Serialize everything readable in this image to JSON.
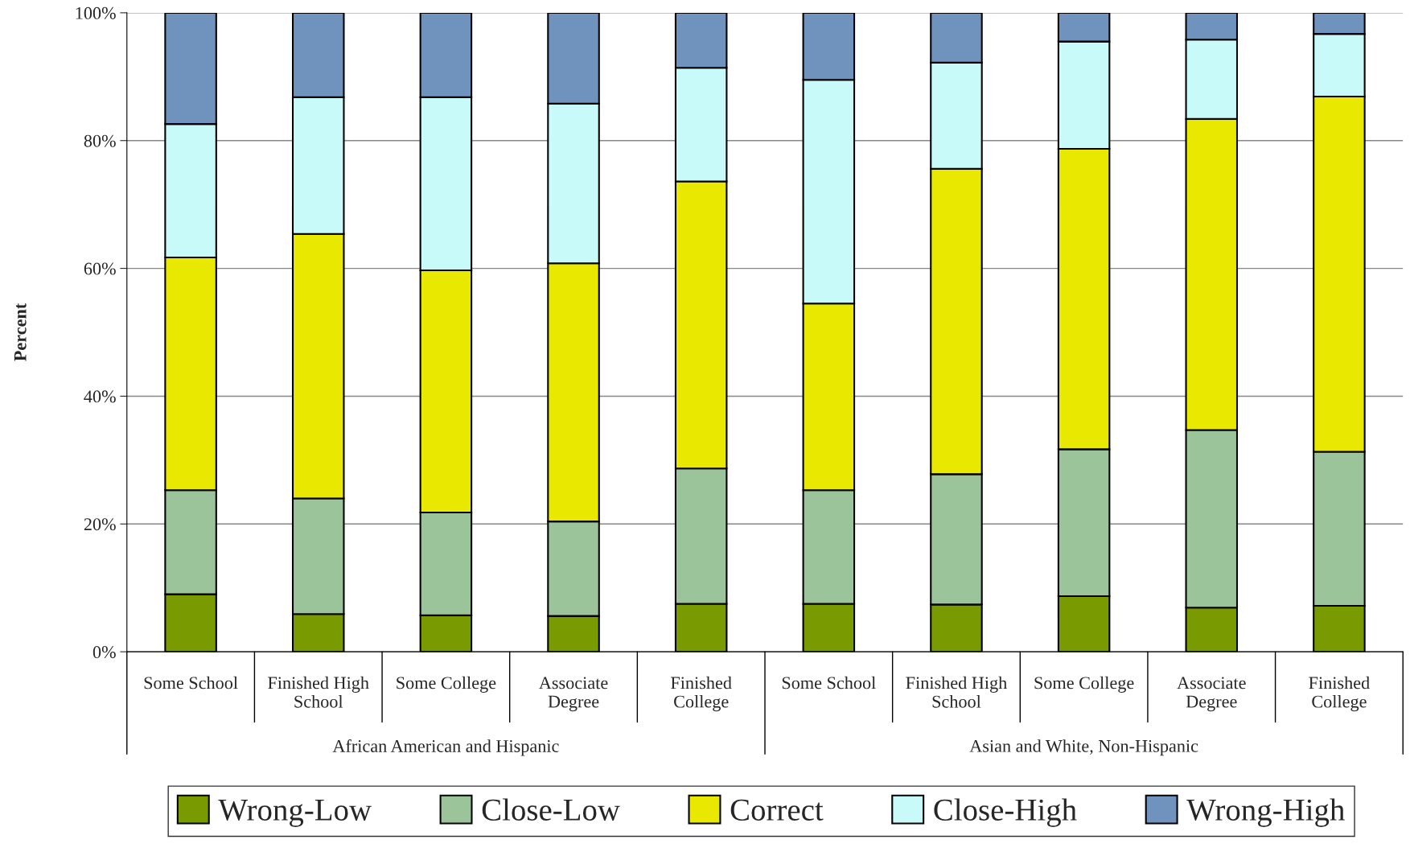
{
  "chart_data": {
    "type": "bar",
    "stacked": true,
    "ylabel": "Percent",
    "categories": [
      "Some School",
      "Finished High\nSchool",
      "Some College",
      "Associate\nDegree",
      "Finished\nCollege",
      "Some School",
      "Finished High\nSchool",
      "Some College",
      "Associate\nDegree",
      "Finished\nCollege"
    ],
    "annotations": [
      "African American and Hispanic",
      "Asian and White, Non-Hispanic"
    ],
    "series": [
      {
        "name": "Wrong-Low",
        "color": "#7a9a01",
        "values": [
          9.0,
          5.9,
          5.7,
          5.6,
          7.5,
          7.5,
          7.4,
          8.7,
          6.9,
          7.2
        ]
      },
      {
        "name": "Close-Low",
        "color": "#9cc49a",
        "values": [
          16.3,
          18.1,
          16.1,
          14.8,
          21.2,
          17.8,
          20.4,
          23.0,
          27.8,
          24.1
        ]
      },
      {
        "name": "Correct",
        "color": "#e8e800",
        "values": [
          36.4,
          41.4,
          37.9,
          40.4,
          44.9,
          29.2,
          47.8,
          47.0,
          48.7,
          55.6
        ]
      },
      {
        "name": "Close-High",
        "color": "#c8fafa",
        "values": [
          20.9,
          21.4,
          27.1,
          25.0,
          17.8,
          35.0,
          16.6,
          16.8,
          12.4,
          9.8
        ]
      },
      {
        "name": "Wrong-High",
        "color": "#6f93bd",
        "values": [
          17.4,
          13.2,
          13.2,
          14.2,
          8.6,
          10.5,
          7.8,
          4.5,
          4.2,
          3.3
        ]
      }
    ],
    "ylim": [
      0,
      100
    ],
    "yticks": [
      {
        "value": 0,
        "label": "0%"
      },
      {
        "value": 20,
        "label": "20%"
      },
      {
        "value": 40,
        "label": "40%"
      },
      {
        "value": 60,
        "label": "60%"
      },
      {
        "value": 80,
        "label": "80%"
      },
      {
        "value": 100,
        "label": "100%"
      }
    ],
    "grid": "y",
    "legend": "bottom"
  }
}
